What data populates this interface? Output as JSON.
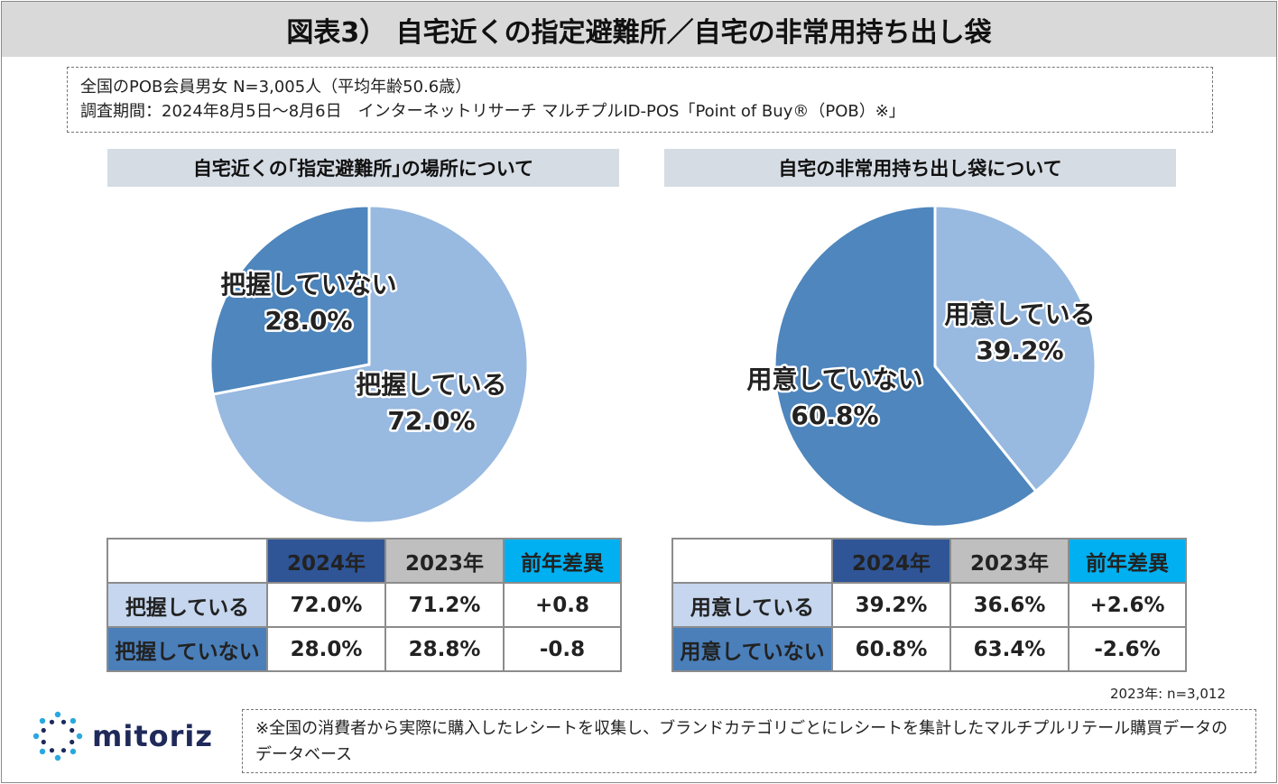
{
  "title": "図表3） 自宅近くの指定避難所／自宅の非常用持ち出し袋",
  "survey": {
    "line1": "全国のPOB会員男女 N=3,005人（平均年齢50.6歳）",
    "line2": "調査期間：2024年8月5日～8月6日　インターネットリサーチ マルチプルID-POS「Point of Buy®（POB）※」"
  },
  "colors": {
    "light_blue": "#98b9e0",
    "mid_blue": "#4e86bd",
    "dark_navy": "#2f5597",
    "gray": "#bfbfbf",
    "cyan": "#00b0f0",
    "pos_red": "#e60012",
    "neg_blue": "#0070c0"
  },
  "chart_data": [
    {
      "type": "pie",
      "title": "自宅近くの｢指定避難所｣の場所について",
      "slices": [
        {
          "label": "把握している",
          "value": 72.0,
          "display": "72.0%",
          "color": "#98b9e0"
        },
        {
          "label": "把握していない",
          "value": 28.0,
          "display": "28.0%",
          "color": "#4e86bd"
        }
      ],
      "table": {
        "headers": [
          "2024年",
          "2023年",
          "前年差異"
        ],
        "rows": [
          {
            "label": "把握している",
            "y2024": "72.0%",
            "y2023": "71.2%",
            "diff": "+0.8"
          },
          {
            "label": "把握していない",
            "y2024": "28.0%",
            "y2023": "28.8%",
            "diff": "-0.8"
          }
        ]
      }
    },
    {
      "type": "pie",
      "title": "自宅の非常用持ち出し袋について",
      "slices": [
        {
          "label": "用意している",
          "value": 39.2,
          "display": "39.2%",
          "color": "#98b9e0"
        },
        {
          "label": "用意していない",
          "value": 60.8,
          "display": "60.8%",
          "color": "#4e86bd"
        }
      ],
      "table": {
        "headers": [
          "2024年",
          "2023年",
          "前年差異"
        ],
        "rows": [
          {
            "label": "用意している",
            "y2024": "39.2%",
            "y2023": "36.6%",
            "diff": "+2.6%"
          },
          {
            "label": "用意していない",
            "y2024": "60.8%",
            "y2023": "63.4%",
            "diff": "-2.6%"
          }
        ]
      }
    }
  ],
  "n_note": "2023年: n=3,012",
  "logo": {
    "text": "mitoriz",
    "icon": "sparkle-logo-icon"
  },
  "footnote": "※全国の消費者から実際に購入したレシートを収集し、ブランドカテゴリごとにレシートを集計したマルチプルリテール購買データのデータベース"
}
